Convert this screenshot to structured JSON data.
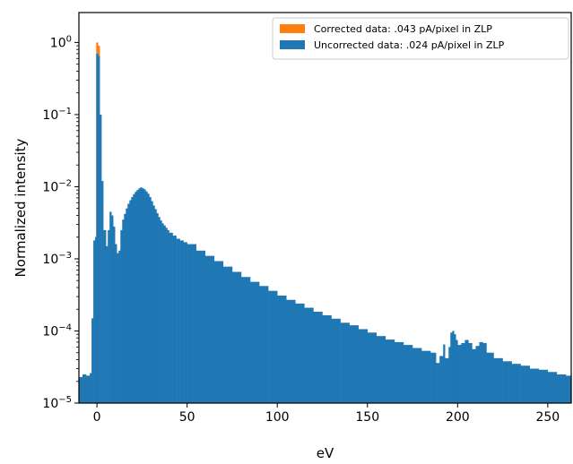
{
  "chart_data": {
    "type": "bar",
    "title": "",
    "xlabel": "eV",
    "ylabel": "Normalized intensity",
    "xlim": [
      -10,
      263
    ],
    "ylim": [
      1e-05,
      2.6
    ],
    "yscale": "log",
    "grid": false,
    "legend_position": "top-right",
    "x_ticks": [
      0,
      50,
      100,
      150,
      200,
      250
    ],
    "x_tick_labels": [
      "0",
      "50",
      "100",
      "150",
      "200",
      "250"
    ],
    "y_ticks": [
      1.0,
      0.1,
      0.01,
      0.001,
      0.0001,
      1e-05
    ],
    "y_tick_labels": [
      {
        "base": "10",
        "exp": "0"
      },
      {
        "base": "10",
        "exp": "−1"
      },
      {
        "base": "10",
        "exp": "−2"
      },
      {
        "base": "10",
        "exp": "−3"
      },
      {
        "base": "10",
        "exp": "−4"
      },
      {
        "base": "10",
        "exp": "−5"
      }
    ],
    "series": [
      {
        "name": "Corrected data: .043 pA/pixel in ZLP",
        "color": "#ff7f0e",
        "points": [
          [
            -1,
            0.002
          ],
          [
            -0.4,
            1.0
          ],
          [
            0.6,
            0.9
          ],
          [
            1.5,
            0.12
          ]
        ]
      },
      {
        "name": "Uncorrected data: .024 pA/pixel in ZLP",
        "color": "#1f77b4",
        "points": [
          [
            -10,
            2.3e-05
          ],
          [
            -8,
            2.5e-05
          ],
          [
            -6,
            2.4e-05
          ],
          [
            -4,
            2.6e-05
          ],
          [
            -3,
            0.00015
          ],
          [
            -2,
            0.0018
          ],
          [
            -1,
            0.002
          ],
          [
            -0.4,
            0.7
          ],
          [
            0.6,
            0.65
          ],
          [
            1.5,
            0.1
          ],
          [
            2.5,
            0.012
          ],
          [
            3.5,
            0.0025
          ],
          [
            5,
            0.0015
          ],
          [
            6,
            0.0025
          ],
          [
            7,
            0.0045
          ],
          [
            8,
            0.004
          ],
          [
            9,
            0.0028
          ],
          [
            10,
            0.0016
          ],
          [
            11,
            0.0012
          ],
          [
            12,
            0.0013
          ],
          [
            13,
            0.0025
          ],
          [
            14,
            0.0035
          ],
          [
            15,
            0.0042
          ],
          [
            16,
            0.005
          ],
          [
            17,
            0.0058
          ],
          [
            18,
            0.0065
          ],
          [
            19,
            0.0072
          ],
          [
            20,
            0.0079
          ],
          [
            21,
            0.0085
          ],
          [
            22,
            0.009
          ],
          [
            23,
            0.0095
          ],
          [
            24,
            0.0098
          ],
          [
            25,
            0.0095
          ],
          [
            26,
            0.0092
          ],
          [
            27,
            0.0086
          ],
          [
            28,
            0.008
          ],
          [
            29,
            0.0072
          ],
          [
            30,
            0.0063
          ],
          [
            31,
            0.0055
          ],
          [
            32,
            0.0049
          ],
          [
            33,
            0.0043
          ],
          [
            34,
            0.0038
          ],
          [
            35,
            0.0034
          ],
          [
            36,
            0.0031
          ],
          [
            37,
            0.0029
          ],
          [
            38,
            0.0027
          ],
          [
            39,
            0.0025
          ],
          [
            40,
            0.0023
          ],
          [
            42,
            0.0021
          ],
          [
            44,
            0.0019
          ],
          [
            46,
            0.0018
          ],
          [
            48,
            0.0017
          ],
          [
            50,
            0.0016
          ],
          [
            55,
            0.0013
          ],
          [
            60,
            0.0011
          ],
          [
            65,
            0.00093
          ],
          [
            70,
            0.00078
          ],
          [
            75,
            0.00066
          ],
          [
            80,
            0.00056
          ],
          [
            85,
            0.00048
          ],
          [
            90,
            0.00042
          ],
          [
            95,
            0.00036
          ],
          [
            100,
            0.00031
          ],
          [
            105,
            0.00027
          ],
          [
            110,
            0.00024
          ],
          [
            115,
            0.00021
          ],
          [
            120,
            0.000185
          ],
          [
            125,
            0.000165
          ],
          [
            130,
            0.000148
          ],
          [
            135,
            0.00013
          ],
          [
            140,
            0.00012
          ],
          [
            145,
            0.000106
          ],
          [
            150,
            9.5e-05
          ],
          [
            155,
            8.5e-05
          ],
          [
            160,
            7.6e-05
          ],
          [
            165,
            7e-05
          ],
          [
            170,
            6.4e-05
          ],
          [
            175,
            5.8e-05
          ],
          [
            180,
            5.3e-05
          ],
          [
            185,
            5e-05
          ],
          [
            188,
            3.6e-05
          ],
          [
            190,
            4.5e-05
          ],
          [
            192,
            6.5e-05
          ],
          [
            193,
            4.2e-05
          ],
          [
            195,
            6e-05
          ],
          [
            196,
            9.5e-05
          ],
          [
            197,
            0.0001
          ],
          [
            198,
            9e-05
          ],
          [
            199,
            7.5e-05
          ],
          [
            200,
            6.4e-05
          ],
          [
            202,
            6.8e-05
          ],
          [
            204,
            7.5e-05
          ],
          [
            206,
            6.8e-05
          ],
          [
            208,
            5.6e-05
          ],
          [
            210,
            6.2e-05
          ],
          [
            212,
            7e-05
          ],
          [
            214,
            6.8e-05
          ],
          [
            216,
            5e-05
          ],
          [
            220,
            4.2e-05
          ],
          [
            225,
            3.8e-05
          ],
          [
            230,
            3.5e-05
          ],
          [
            235,
            3.3e-05
          ],
          [
            240,
            3e-05
          ],
          [
            245,
            2.9e-05
          ],
          [
            250,
            2.7e-05
          ],
          [
            255,
            2.5e-05
          ],
          [
            260,
            2.4e-05
          ],
          [
            263,
            2.4e-05
          ]
        ]
      }
    ]
  }
}
